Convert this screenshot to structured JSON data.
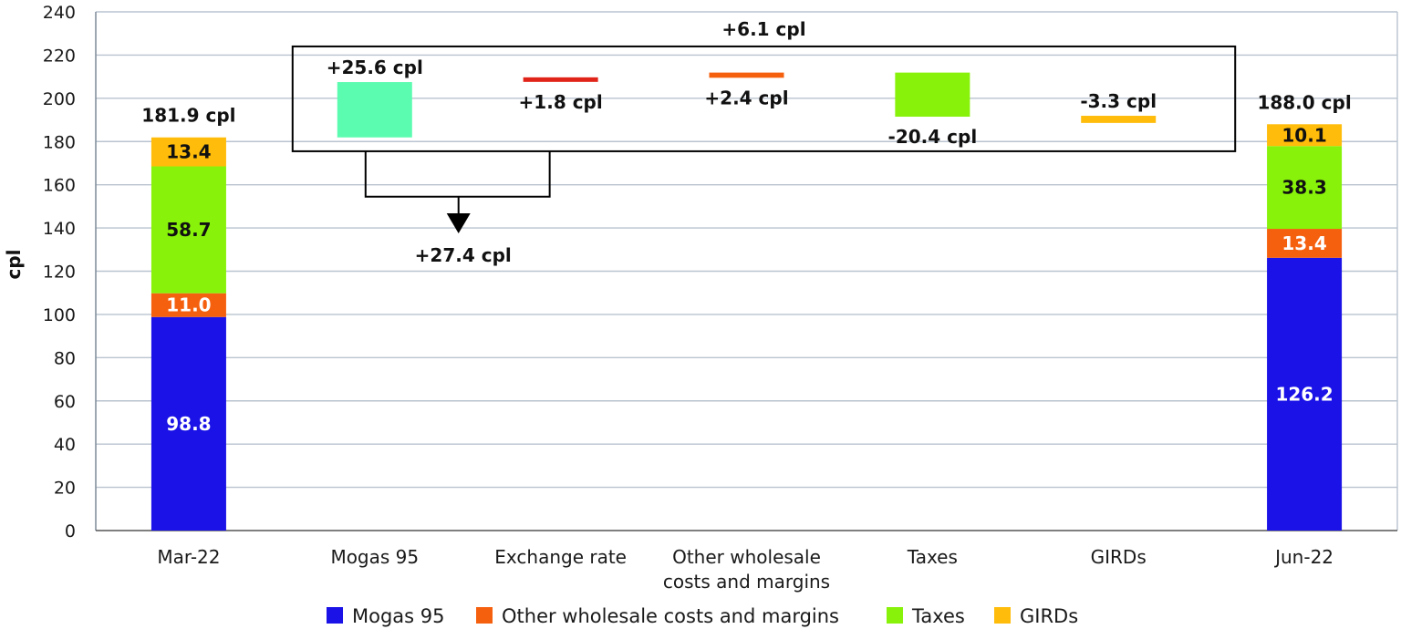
{
  "chart_data": {
    "type": "bar",
    "ylabel": "cpl",
    "ylim": [
      0,
      240
    ],
    "yticks": [
      0,
      20,
      40,
      60,
      80,
      100,
      120,
      140,
      160,
      180,
      200,
      220,
      240
    ],
    "grid": true,
    "legend_position": "bottom",
    "categories": [
      "Mar-22",
      "Mogas 95",
      "Exchange rate",
      "Other wholesale costs and margins",
      "Taxes",
      "GIRDs",
      "Jun-22"
    ],
    "category_lines": [
      [
        "Mar-22"
      ],
      [
        "Mogas 95"
      ],
      [
        "Exchange rate"
      ],
      [
        "Other wholesale",
        "costs and margins"
      ],
      [
        "Taxes"
      ],
      [
        "GIRDs"
      ],
      [
        "Jun-22"
      ]
    ],
    "series": [
      {
        "name": "Mogas 95",
        "color": "#1a12e6"
      },
      {
        "name": "Other wholesale costs and margins",
        "color": "#f5600f"
      },
      {
        "name": "Taxes",
        "color": "#88f20a"
      },
      {
        "name": "GIRDs",
        "color": "#ffbc0a"
      }
    ],
    "stacks": [
      {
        "category": "Mar-22",
        "total": 181.9,
        "total_label": "181.9 cpl",
        "segments": [
          {
            "series": "Mogas 95",
            "value": 98.8,
            "label": "98.8",
            "label_color": "#ffffff"
          },
          {
            "series": "Other wholesale costs and margins",
            "value": 11.0,
            "label": "11.0",
            "label_color": "#ffffff"
          },
          {
            "series": "Taxes",
            "value": 58.7,
            "label": "58.7",
            "label_color": "#111111"
          },
          {
            "series": "GIRDs",
            "value": 13.4,
            "label": "13.4",
            "label_color": "#111111"
          }
        ]
      },
      {
        "category": "Jun-22",
        "total": 188.0,
        "total_label": "188.0 cpl",
        "segments": [
          {
            "series": "Mogas 95",
            "value": 126.2,
            "label": "126.2",
            "label_color": "#ffffff"
          },
          {
            "series": "Other wholesale costs and margins",
            "value": 13.4,
            "label": "13.4",
            "label_color": "#ffffff"
          },
          {
            "series": "Taxes",
            "value": 38.3,
            "label": "38.3",
            "label_color": "#111111"
          },
          {
            "series": "GIRDs",
            "value": 10.1,
            "label": "10.1",
            "label_color": "#111111"
          }
        ]
      }
    ],
    "changes": [
      {
        "category": "Mogas 95",
        "from": 181.9,
        "to": 207.5,
        "label": "+25.6 cpl",
        "label_position": "above",
        "color": "#5cfcb0"
      },
      {
        "category": "Exchange rate",
        "from": 207.9,
        "to": 209.7,
        "label": "+1.8 cpl",
        "label_position": "below",
        "color": "#e0241a"
      },
      {
        "category": "Other wholesale costs and margins",
        "from": 209.5,
        "to": 211.9,
        "label": "+2.4 cpl",
        "label_position": "below",
        "color": "#f5600f"
      },
      {
        "category": "Taxes",
        "from": 191.5,
        "to": 211.9,
        "label": "-20.4 cpl",
        "label_position": "below",
        "color": "#88f20a"
      },
      {
        "category": "GIRDs",
        "from": 188.6,
        "to": 191.9,
        "label": "-3.3 cpl",
        "label_position": "above",
        "color": "#ffbc0a"
      }
    ],
    "annotations": [
      {
        "label": "+6.1 cpl",
        "kind": "overall-change-box",
        "y_top": 224.0,
        "y_bottom": 175.5
      },
      {
        "label": "+27.4 cpl",
        "kind": "combined-change-bracket",
        "covers": [
          "Mogas 95",
          "Exchange rate"
        ],
        "bracket_y": 154.5,
        "arrow_tip_y": 137.5
      }
    ]
  }
}
